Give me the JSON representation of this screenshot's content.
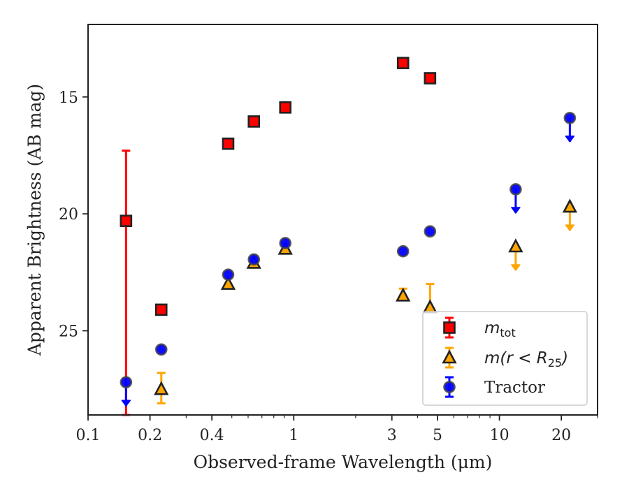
{
  "chart_data": {
    "type": "scatter",
    "xlabel": "Observed-frame Wavelength (μm)",
    "ylabel": "Apparent Brightness (AB mag)",
    "xscale": "log",
    "xlim": [
      0.1,
      30
    ],
    "ylim": [
      28.6,
      11.9
    ],
    "y_inverted": true,
    "grid": false,
    "x_ticks": [
      {
        "value": 0.1,
        "label": "0.1"
      },
      {
        "value": 0.2,
        "label": "0.2"
      },
      {
        "value": 0.4,
        "label": "0.4"
      },
      {
        "value": 1,
        "label": "1"
      },
      {
        "value": 3,
        "label": "3"
      },
      {
        "value": 5,
        "label": "5"
      },
      {
        "value": 10,
        "label": "10"
      },
      {
        "value": 20,
        "label": "20"
      }
    ],
    "x_minor_ticks": [
      0.3,
      0.5,
      0.6,
      0.7,
      0.8,
      0.9,
      2,
      4,
      6,
      7,
      8,
      9,
      30
    ],
    "y_ticks": [
      {
        "value": 15,
        "label": "15"
      },
      {
        "value": 20,
        "label": "20"
      },
      {
        "value": 25,
        "label": "25"
      }
    ],
    "legend_position": "bottom-right",
    "series": [
      {
        "name": "m_tot",
        "legend_main": "m",
        "legend_sub": "tot",
        "marker": "square",
        "face_color": "#ff0000",
        "edge_color": "#222222",
        "error_color": "#ff0000",
        "points": [
          {
            "x": 0.153,
            "y": 20.3,
            "err_lo": 17.3,
            "err_hi": 28.6
          },
          {
            "x": 0.227,
            "y": 24.1
          },
          {
            "x": 0.48,
            "y": 17.0
          },
          {
            "x": 0.64,
            "y": 16.05
          },
          {
            "x": 0.91,
            "y": 15.45
          },
          {
            "x": 3.4,
            "y": 13.55
          },
          {
            "x": 4.6,
            "y": 14.2
          }
        ]
      },
      {
        "name": "m(r < R_25)",
        "legend_main": "m(r < R",
        "legend_sub": "25",
        "legend_tail": ")",
        "marker": "triangle",
        "face_color": "#ffa500",
        "edge_color": "#222222",
        "error_color": "#ffa500",
        "points": [
          {
            "x": 0.227,
            "y": 27.5,
            "err_lo": 26.8,
            "err_hi": 28.1
          },
          {
            "x": 0.48,
            "y": 23.0
          },
          {
            "x": 0.64,
            "y": 22.1
          },
          {
            "x": 0.91,
            "y": 21.5
          },
          {
            "x": 3.4,
            "y": 23.5,
            "err_lo": 23.2,
            "err_hi": 23.7
          },
          {
            "x": 4.6,
            "y": 24.0,
            "err_lo": 23.0,
            "err_hi": 24.1
          },
          {
            "x": 12,
            "y": 21.4,
            "upper_limit": true
          },
          {
            "x": 22,
            "y": 19.7,
            "upper_limit": true
          }
        ]
      },
      {
        "name": "Tractor",
        "legend_main": "Tractor",
        "marker": "circle",
        "face_color": "#0000ff",
        "edge_color": "#444444",
        "error_color": "#0000ff",
        "points": [
          {
            "x": 0.153,
            "y": 27.2,
            "upper_limit": true
          },
          {
            "x": 0.227,
            "y": 25.8
          },
          {
            "x": 0.48,
            "y": 22.6
          },
          {
            "x": 0.64,
            "y": 21.95
          },
          {
            "x": 0.91,
            "y": 21.25
          },
          {
            "x": 3.4,
            "y": 21.6
          },
          {
            "x": 4.6,
            "y": 20.75
          },
          {
            "x": 12,
            "y": 18.95,
            "upper_limit": true
          },
          {
            "x": 22,
            "y": 15.9,
            "upper_limit": true
          }
        ]
      }
    ]
  }
}
